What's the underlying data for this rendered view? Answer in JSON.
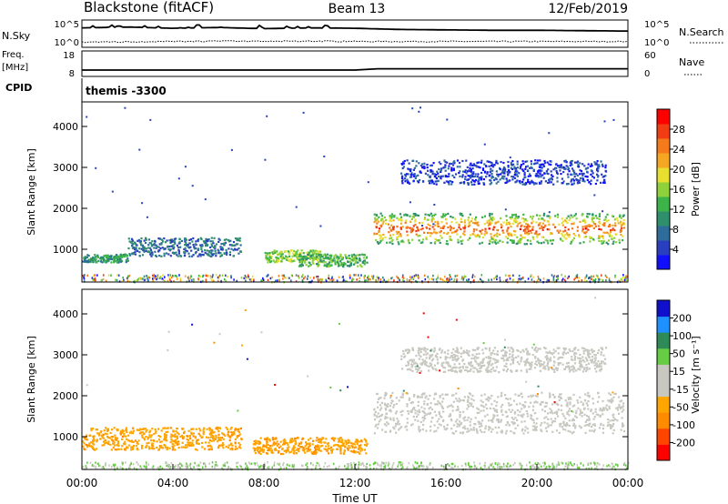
{
  "header": {
    "station": "Blackstone (fitACF)",
    "beam": "Beam 13",
    "date": "12/Feb/2019"
  },
  "colors": {
    "power_scale": [
      "#1010ff",
      "#2a3fc0",
      "#2e6c9c",
      "#2f8f6c",
      "#3cb44a",
      "#8fd13a",
      "#e8e030",
      "#f5a623",
      "#f57a1c",
      "#f23d14",
      "#ff0000"
    ],
    "velocity_scale": [
      "#ff0000",
      "#ff4500",
      "#ff8c00",
      "#ffa500",
      "#c8c8c0",
      "#c8c8c0",
      "#66cc44",
      "#2e8b57",
      "#1e90ff",
      "#1010cc"
    ],
    "ground_scatter": "#c8c8c0"
  },
  "chart_data": [
    {
      "type": "line",
      "name": "noise-panel",
      "ylabel": "N.Sky",
      "ylabel_right": "N.Search",
      "yticks": [
        "10^5",
        "10^0"
      ],
      "yticks_right": [
        "10^5",
        "10^0"
      ],
      "x": [
        0,
        2,
        4,
        6,
        8,
        10,
        12,
        14,
        16,
        18,
        20,
        22,
        24
      ],
      "series": [
        {
          "name": "N.Sky",
          "style": "solid",
          "values": [
            4.4,
            4.6,
            4.3,
            4.5,
            4.2,
            4.4,
            4.3,
            4.0,
            3.9,
            3.8,
            3.8,
            3.7,
            3.6
          ]
        },
        {
          "name": "N.Search",
          "style": "dotted",
          "values": [
            0.8,
            0.9,
            1.0,
            1.1,
            1.0,
            1.1,
            1.0,
            1.0,
            1.0,
            1.0,
            1.0,
            1.0,
            1.0
          ]
        }
      ]
    },
    {
      "type": "line",
      "name": "frequency-panel",
      "ylabel": "Freq.",
      "yunit": "[MHz]",
      "ylabel_right": "Nave",
      "yticks": [
        "18",
        "8"
      ],
      "yticks_right": [
        "60",
        "0"
      ],
      "x": [
        0,
        2,
        4,
        6,
        8,
        10,
        12,
        13,
        14,
        16,
        18,
        20,
        22,
        24
      ],
      "series": [
        {
          "name": "Freq.",
          "style": "solid",
          "values": [
            10.5,
            10.5,
            10.5,
            10.5,
            10.5,
            10.5,
            10.5,
            11.0,
            11.0,
            11.0,
            11.0,
            11.0,
            11.0,
            11.0
          ]
        }
      ]
    },
    {
      "type": "table",
      "name": "cpid-strip",
      "label": "CPID",
      "annotation": "themis -3300"
    },
    {
      "type": "heatmap",
      "name": "power-panel",
      "ylabel": "Slant Range [km]",
      "xlim": [
        0,
        24
      ],
      "ylim": [
        200,
        4600
      ],
      "yticks": [
        1000,
        2000,
        3000,
        4000
      ],
      "colorbar_label": "Power [dB]",
      "colorbar_ticks": [
        "4",
        "8",
        "12",
        "16",
        "20",
        "24",
        "28"
      ],
      "bands": [
        {
          "t0": 0,
          "t1": 2,
          "r0": 700,
          "r1": 900,
          "level": 3
        },
        {
          "t0": 2,
          "t1": 7,
          "r0": 850,
          "r1": 1300,
          "level": 2
        },
        {
          "t0": 8,
          "t1": 10.5,
          "r0": 700,
          "r1": 1000,
          "level": 5
        },
        {
          "t0": 9.5,
          "t1": 12.5,
          "r0": 600,
          "r1": 900,
          "level": 4
        },
        {
          "t0": 12.8,
          "t1": 23.8,
          "r0": 1150,
          "r1": 1900,
          "level": 8
        },
        {
          "t0": 14,
          "t1": 23,
          "r0": 2600,
          "r1": 3200,
          "level": 1
        }
      ]
    },
    {
      "type": "heatmap",
      "name": "velocity-panel",
      "ylabel": "Slant Range [km]",
      "xlabel": "Time UT",
      "xlim": [
        0,
        24
      ],
      "ylim": [
        200,
        4600
      ],
      "xticks": [
        "00:00",
        "04:00",
        "08:00",
        "12:00",
        "16:00",
        "20:00",
        "00:00"
      ],
      "yticks": [
        1000,
        2000,
        3000,
        4000
      ],
      "colorbar_label": "Velocity [m s⁻¹]",
      "colorbar_ticks": [
        "-200",
        "-100",
        "-50",
        "-15",
        "15",
        "50",
        "100",
        "200"
      ],
      "bands": [
        {
          "t0": 0,
          "t1": 7,
          "r0": 700,
          "r1": 1250,
          "kind": "negative"
        },
        {
          "t0": 7.5,
          "t1": 12.5,
          "r0": 600,
          "r1": 1000,
          "kind": "negative"
        },
        {
          "t0": 12.8,
          "t1": 23.8,
          "r0": 1100,
          "r1": 2100,
          "kind": "ground"
        },
        {
          "t0": 14,
          "t1": 23,
          "r0": 2600,
          "r1": 3200,
          "kind": "ground"
        }
      ]
    }
  ]
}
